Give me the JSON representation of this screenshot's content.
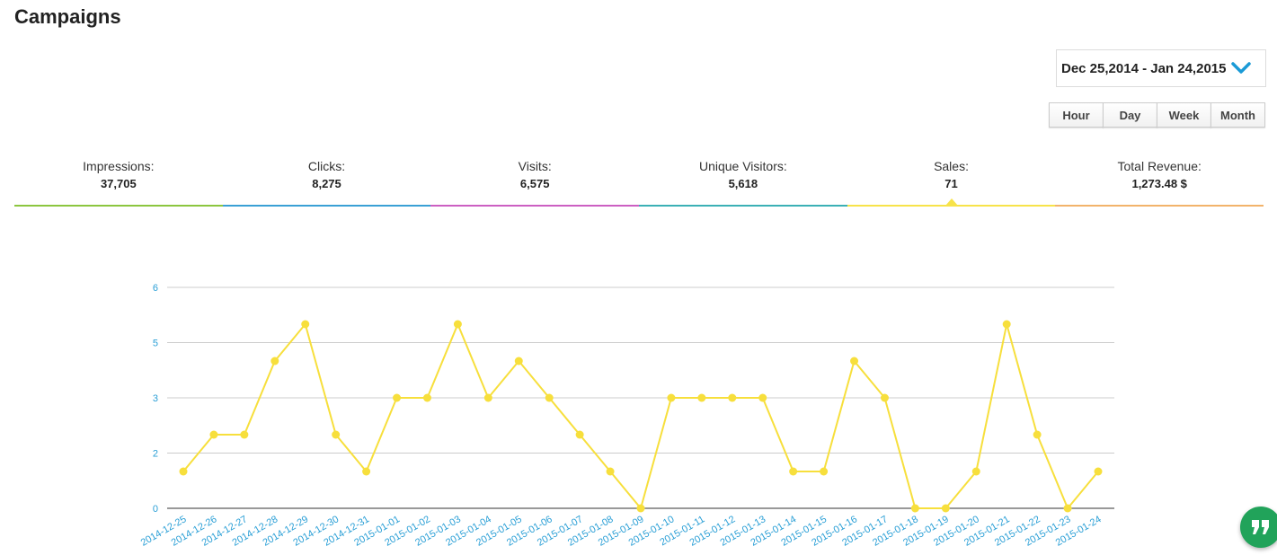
{
  "page": {
    "title": "Campaigns"
  },
  "date_range": {
    "label": "Dec 25,2014 - Jan 24,2015",
    "icon": "chevron-down-icon",
    "accent": "#1a9ad6"
  },
  "granularity": {
    "buttons": [
      {
        "label": "Hour"
      },
      {
        "label": "Day"
      },
      {
        "label": "Week"
      },
      {
        "label": "Month"
      }
    ]
  },
  "metrics": [
    {
      "label": "Impressions:",
      "value": "37,705",
      "color": "#8cc63f"
    },
    {
      "label": "Clicks:",
      "value": "8,275",
      "color": "#3aa0d5"
    },
    {
      "label": "Visits:",
      "value": "6,575",
      "color": "#cc5fc2"
    },
    {
      "label": "Unique Visitors:",
      "value": "5,618",
      "color": "#3bb0b5"
    },
    {
      "label": "Sales:",
      "value": "71",
      "color": "#f7e34a",
      "selected": true
    },
    {
      "label": "Total Revenue:",
      "value": "1,273.48 $",
      "color": "#f2b36b"
    }
  ],
  "chat_button": {
    "icon": "quote-icon",
    "color": "#21a35a"
  },
  "chart_data": {
    "type": "line",
    "title": "",
    "xlabel": "",
    "ylabel": "",
    "y_ticks": [
      "0",
      "2",
      "3",
      "5",
      "6"
    ],
    "ylim": [
      0,
      6
    ],
    "grid": true,
    "line_color": "#f7df3c",
    "axis_label_color": "#2a9fd6",
    "x": [
      "2014-12-25",
      "2014-12-26",
      "2014-12-27",
      "2014-12-28",
      "2014-12-29",
      "2014-12-30",
      "2014-12-31",
      "2015-01-01",
      "2015-01-02",
      "2015-01-03",
      "2015-01-04",
      "2015-01-05",
      "2015-01-06",
      "2015-01-07",
      "2015-01-08",
      "2015-01-09",
      "2015-01-10",
      "2015-01-11",
      "2015-01-12",
      "2015-01-13",
      "2015-01-14",
      "2015-01-15",
      "2015-01-16",
      "2015-01-17",
      "2015-01-18",
      "2015-01-19",
      "2015-01-20",
      "2015-01-21",
      "2015-01-22",
      "2015-01-23",
      "2015-01-24"
    ],
    "series": [
      {
        "values": [
          1,
          2,
          2,
          4,
          5,
          2,
          1,
          3,
          3,
          5,
          3,
          4,
          3,
          2,
          1,
          0,
          3,
          3,
          3,
          3,
          1,
          1,
          4,
          3,
          0,
          0,
          1,
          5,
          2,
          0,
          1
        ]
      }
    ]
  }
}
